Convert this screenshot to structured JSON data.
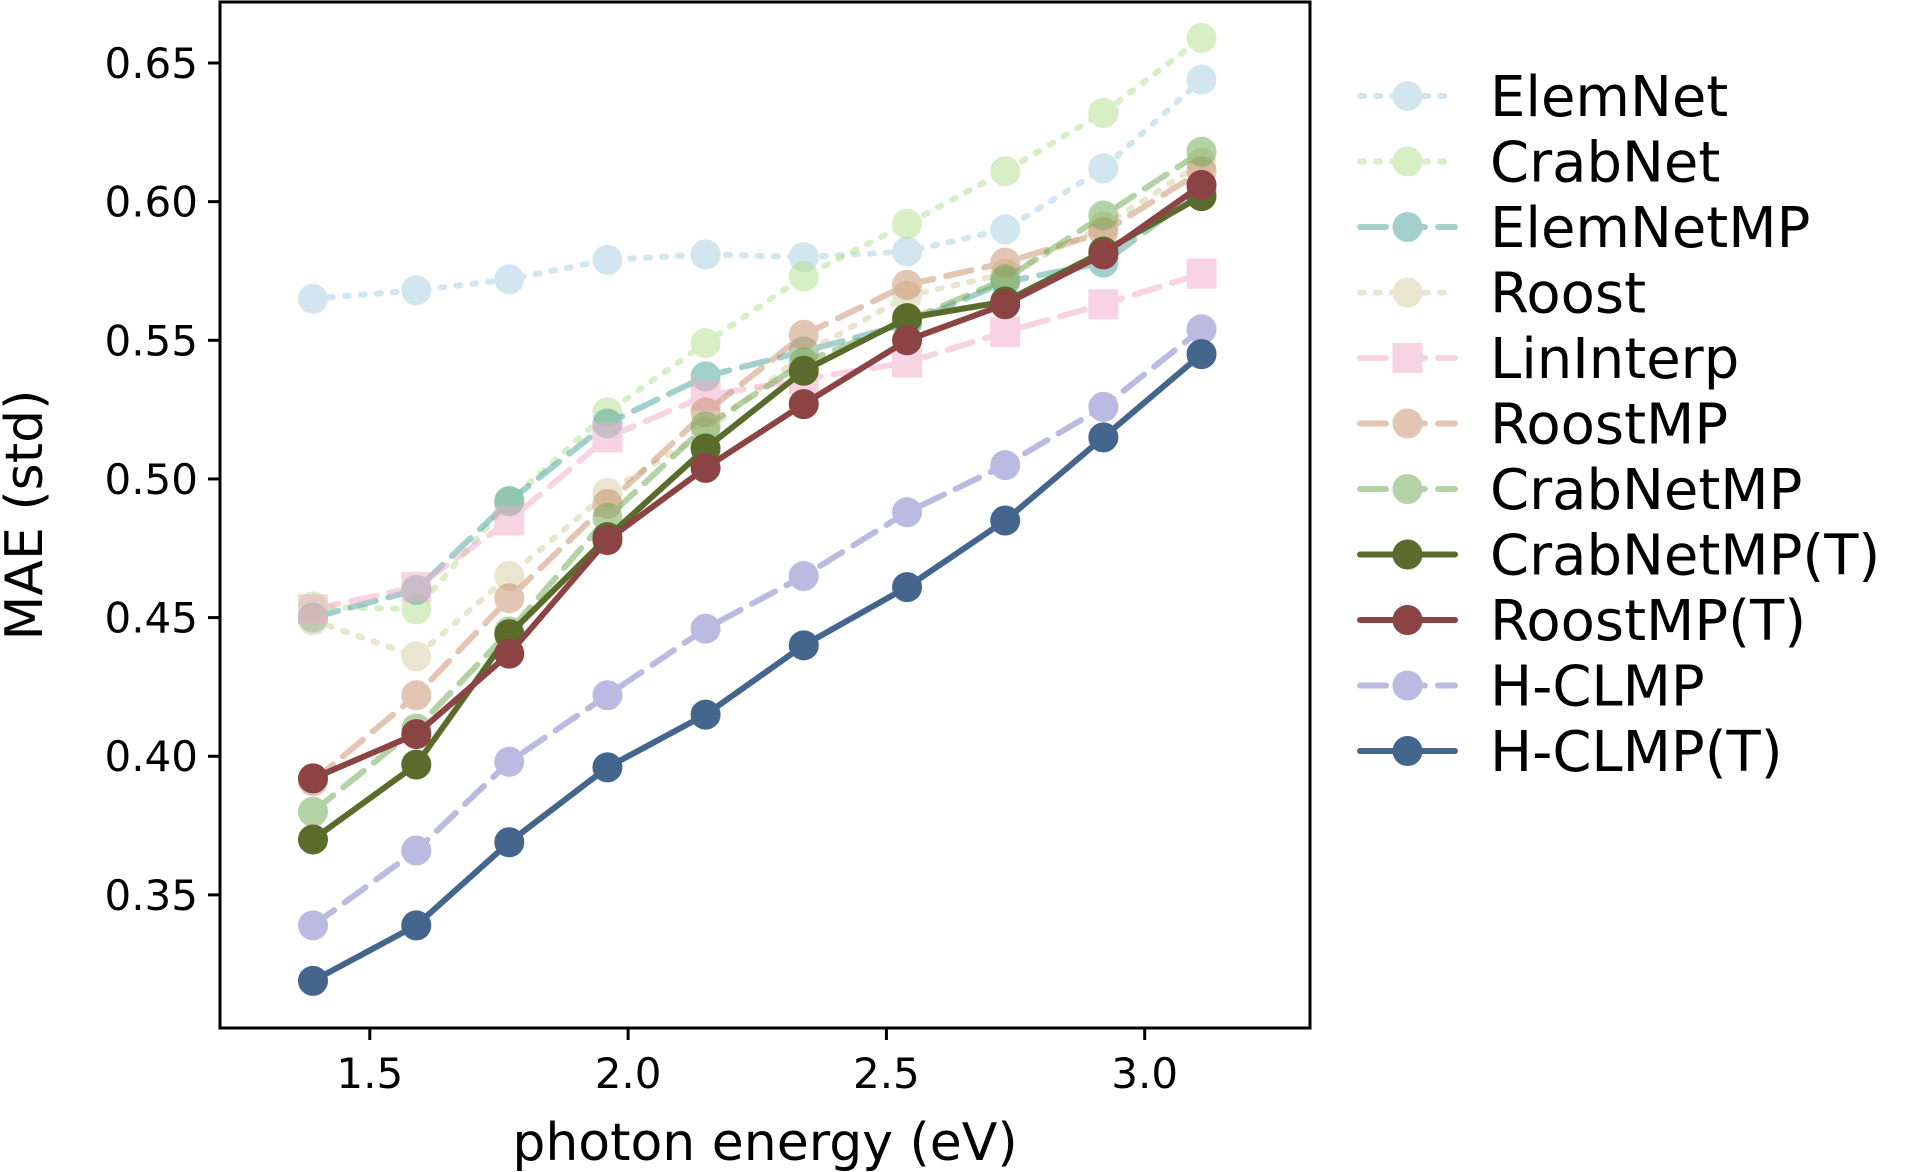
{
  "chart_data": {
    "type": "line",
    "title": "",
    "xlabel": "photon energy (eV)",
    "ylabel": "MAE (std)",
    "xlim": [
      1.21,
      3.32
    ],
    "ylim": [
      0.302,
      0.672
    ],
    "xticks": [
      1.5,
      2.0,
      2.5,
      3.0
    ],
    "xtick_labels": [
      "1.5",
      "2.0",
      "2.5",
      "3.0"
    ],
    "yticks": [
      0.35,
      0.4,
      0.45,
      0.5,
      0.55,
      0.6,
      0.65
    ],
    "ytick_labels": [
      "0.35",
      "0.40",
      "0.45",
      "0.50",
      "0.55",
      "0.60",
      "0.65"
    ],
    "grid": false,
    "legend_position": "right-outside",
    "x": [
      1.39,
      1.59,
      1.77,
      1.96,
      2.15,
      2.34,
      2.54,
      2.73,
      2.92,
      3.11
    ],
    "series": [
      {
        "name": "ElemNet",
        "values": [
          0.565,
          0.568,
          0.572,
          0.579,
          0.581,
          0.58,
          0.582,
          0.59,
          0.612,
          0.644
        ],
        "color": "#a6cee3",
        "dash": "dotted",
        "marker": "circle",
        "opacity": 0.5
      },
      {
        "name": "CrabNet",
        "values": [
          0.454,
          0.453,
          0.492,
          0.524,
          0.549,
          0.573,
          0.592,
          0.611,
          0.632,
          0.659
        ],
        "color": "#b2df8a",
        "dash": "dotted",
        "marker": "circle",
        "opacity": 0.5
      },
      {
        "name": "ElemNetMP",
        "values": [
          0.45,
          0.46,
          0.492,
          0.52,
          0.537,
          0.546,
          0.556,
          0.571,
          0.578,
          0.604
        ],
        "color": "#4aa29a",
        "dash": "dashed",
        "marker": "circle",
        "opacity": 0.5
      },
      {
        "name": "Roost",
        "values": [
          0.449,
          0.436,
          0.465,
          0.495,
          0.517,
          0.545,
          0.566,
          0.574,
          0.591,
          0.614
        ],
        "color": "#d4cca0",
        "dash": "dotted",
        "marker": "circle",
        "opacity": 0.5
      },
      {
        "name": "LinInterp",
        "values": [
          0.453,
          0.461,
          0.485,
          0.515,
          0.53,
          0.536,
          0.542,
          0.553,
          0.563,
          0.574
        ],
        "color": "#f2aac8",
        "dash": "dashed",
        "marker": "square",
        "opacity": 0.5
      },
      {
        "name": "RoostMP",
        "values": [
          0.391,
          0.422,
          0.457,
          0.491,
          0.524,
          0.552,
          0.57,
          0.578,
          0.589,
          0.611
        ],
        "color": "#c98d6a",
        "dash": "dashed",
        "marker": "circle",
        "opacity": 0.5
      },
      {
        "name": "CrabNetMP",
        "values": [
          0.38,
          0.41,
          0.445,
          0.486,
          0.519,
          0.542,
          0.557,
          0.572,
          0.595,
          0.618
        ],
        "color": "#6aa84f",
        "dash": "dashed",
        "marker": "circle",
        "opacity": 0.5
      },
      {
        "name": "CrabNetMP(T)",
        "values": [
          0.37,
          0.397,
          0.444,
          0.479,
          0.511,
          0.539,
          0.558,
          0.564,
          0.582,
          0.602
        ],
        "color": "#5a6b2b",
        "dash": "solid",
        "marker": "circle",
        "opacity": 1.0
      },
      {
        "name": "RoostMP(T)",
        "values": [
          0.392,
          0.408,
          0.437,
          0.478,
          0.504,
          0.527,
          0.55,
          0.563,
          0.581,
          0.606
        ],
        "color": "#8b4343",
        "dash": "solid",
        "marker": "circle",
        "opacity": 1.0
      },
      {
        "name": "H-CLMP",
        "values": [
          0.339,
          0.366,
          0.398,
          0.422,
          0.446,
          0.465,
          0.488,
          0.505,
          0.526,
          0.554
        ],
        "color": "#8f8fd0",
        "dash": "dashed",
        "marker": "circle",
        "opacity": 0.6
      },
      {
        "name": "H-CLMP(T)",
        "values": [
          0.319,
          0.339,
          0.369,
          0.396,
          0.415,
          0.44,
          0.461,
          0.485,
          0.515,
          0.545
        ],
        "color": "#44658c",
        "dash": "solid",
        "marker": "circle",
        "opacity": 1.0
      }
    ]
  }
}
